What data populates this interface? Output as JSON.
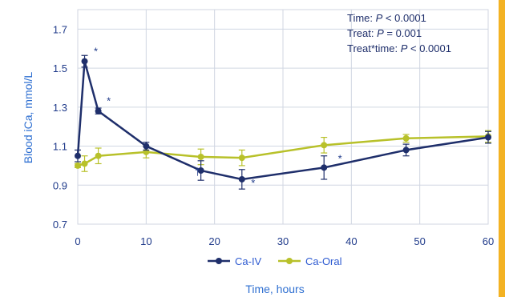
{
  "chart_data": {
    "type": "line",
    "title": "",
    "xlabel": "Time, hours",
    "ylabel": "Blood iCa, mmol/L",
    "xlim": [
      0,
      60
    ],
    "ylim": [
      0.7,
      1.8
    ],
    "xticks": [
      "0",
      "10",
      "20",
      "30",
      "40",
      "50",
      "60"
    ],
    "yticks": [
      "0.7",
      "0.9",
      "1.1",
      "1.3",
      "1.5",
      "1.7"
    ],
    "grid": true,
    "legend_position": "bottom",
    "series": [
      {
        "name": "Ca-IV",
        "color": "#1f2f6b",
        "x": [
          0,
          1,
          3,
          10,
          18,
          24,
          36,
          48,
          60
        ],
        "y": [
          1.05,
          1.535,
          1.28,
          1.1,
          0.975,
          0.93,
          0.99,
          1.08,
          1.145
        ],
        "err": [
          0.03,
          0.03,
          0.015,
          0.02,
          0.05,
          0.05,
          0.06,
          0.03,
          0.03
        ]
      },
      {
        "name": "Ca-Oral",
        "color": "#b8c12a",
        "x": [
          0,
          1,
          3,
          10,
          18,
          24,
          36,
          48,
          60
        ],
        "y": [
          1.0,
          1.01,
          1.05,
          1.07,
          1.045,
          1.04,
          1.105,
          1.14,
          1.15
        ],
        "err": [
          0.01,
          0.04,
          0.04,
          0.03,
          0.04,
          0.04,
          0.04,
          0.02,
          0.03
        ]
      }
    ],
    "annotations": [
      {
        "text": "*",
        "x": 1,
        "y": 1.535
      },
      {
        "text": "*",
        "x": 3,
        "y": 1.28
      },
      {
        "text": "†",
        "x": 18,
        "y": 0.975
      },
      {
        "text": "*",
        "x": 24,
        "y": 0.93
      },
      {
        "text": "*",
        "x": 36,
        "y": 0.99
      }
    ],
    "stats_text": [
      {
        "label": "Time: ",
        "p": "P",
        "rest": " < 0.0001"
      },
      {
        "label": "Treat: ",
        "p": "P",
        "rest": " = 0.001"
      },
      {
        "label": "Treat*time: ",
        "p": "P",
        "rest": " < 0.0001"
      }
    ]
  },
  "accent_color": "#f3b223"
}
